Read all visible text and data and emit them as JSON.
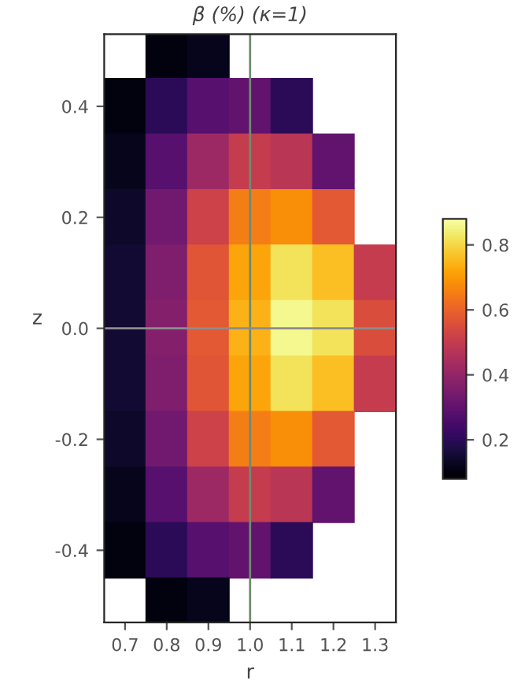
{
  "chart_data": {
    "type": "scatter",
    "title": "β (%) (κ=1)",
    "xlabel": "r",
    "ylabel": "z",
    "marker": "square",
    "x": [
      0.8,
      0.9,
      0.7,
      0.8,
      0.9,
      1.0,
      1.1,
      0.7,
      0.8,
      0.9,
      1.0,
      1.1,
      1.2,
      0.7,
      0.8,
      0.9,
      1.0,
      1.1,
      1.2,
      0.7,
      0.8,
      0.9,
      1.0,
      1.1,
      1.2,
      1.3,
      0.7,
      0.8,
      0.9,
      1.0,
      1.1,
      1.2,
      1.3,
      0.7,
      0.8,
      0.9,
      1.0,
      1.1,
      1.2,
      1.3,
      0.7,
      0.8,
      0.9,
      1.0,
      1.1,
      1.2,
      0.7,
      0.8,
      0.9,
      1.0,
      1.1,
      1.2,
      0.7,
      0.8,
      0.9,
      1.0,
      1.1,
      0.8,
      0.9
    ],
    "values": [
      0.5,
      0.5,
      0.4,
      0.4,
      0.4,
      0.4,
      0.4,
      0.3,
      0.3,
      0.3,
      0.3,
      0.3,
      0.3,
      0.2,
      0.2,
      0.2,
      0.2,
      0.2,
      0.2,
      0.1,
      0.1,
      0.1,
      0.1,
      0.1,
      0.1,
      0.1,
      0.0,
      0.0,
      0.0,
      0.0,
      0.0,
      0.0,
      0.0,
      -0.1,
      -0.1,
      -0.1,
      -0.1,
      -0.1,
      -0.1,
      -0.1,
      -0.2,
      -0.2,
      -0.2,
      -0.2,
      -0.2,
      -0.2,
      -0.3,
      -0.3,
      -0.3,
      -0.3,
      -0.3,
      -0.3,
      -0.4,
      -0.4,
      -0.4,
      -0.4,
      -0.4,
      -0.5,
      -0.5
    ],
    "cvalues": [
      0.1,
      0.12,
      0.1,
      0.2,
      0.28,
      0.3,
      0.2,
      0.12,
      0.28,
      0.42,
      0.5,
      0.48,
      0.3,
      0.14,
      0.33,
      0.52,
      0.65,
      0.68,
      0.58,
      0.15,
      0.36,
      0.57,
      0.72,
      0.82,
      0.76,
      0.5,
      0.15,
      0.37,
      0.58,
      0.74,
      0.86,
      0.82,
      0.55,
      0.15,
      0.36,
      0.57,
      0.72,
      0.82,
      0.76,
      0.5,
      0.14,
      0.33,
      0.52,
      0.65,
      0.68,
      0.58,
      0.12,
      0.28,
      0.42,
      0.5,
      0.48,
      0.3,
      0.1,
      0.2,
      0.28,
      0.3,
      0.2,
      0.1,
      0.12
    ],
    "clim": [
      0.08,
      0.88
    ],
    "cticks": [
      0.2,
      0.4,
      0.6,
      0.8
    ],
    "xlim": [
      0.65,
      1.35
    ],
    "xticks": [
      0.7,
      0.8,
      0.9,
      {
        "value": 1.0,
        "label": "1.0"
      },
      1.1,
      1.2,
      1.3
    ],
    "ylim": [
      -0.53,
      0.53
    ],
    "yticks": [
      -0.4,
      -0.2,
      {
        "value": 0.0,
        "label": "0.0"
      },
      0.2,
      0.4
    ],
    "ref_lines": [
      {
        "axis": "x",
        "value": 1.0,
        "color": "#6e8c6e"
      },
      {
        "axis": "y",
        "value": 0.0,
        "color": "#8c8c8c"
      }
    ],
    "grid": false
  }
}
